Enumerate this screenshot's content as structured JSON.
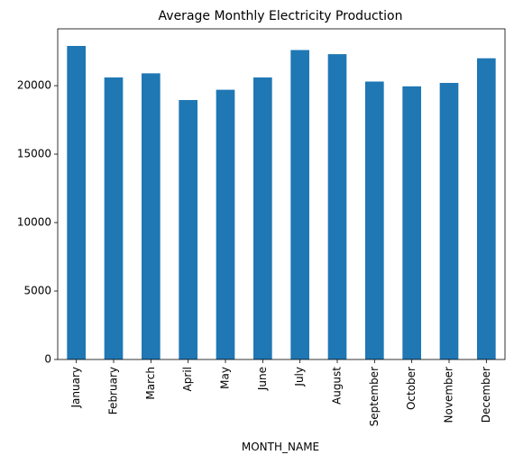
{
  "chart_data": {
    "type": "bar",
    "title": "Average Monthly Electricity Production",
    "xlabel": "MONTH_NAME",
    "ylabel": "",
    "categories": [
      "January",
      "February",
      "March",
      "April",
      "May",
      "June",
      "July",
      "August",
      "September",
      "October",
      "November",
      "December"
    ],
    "values": [
      22900,
      20600,
      20900,
      18950,
      19700,
      20600,
      22600,
      22300,
      20300,
      19950,
      20200,
      22000
    ],
    "ylim": [
      0,
      24150
    ],
    "yticks": [
      0,
      5000,
      10000,
      15000,
      20000
    ],
    "ytick_labels": [
      "0",
      "5000",
      "10000",
      "15000",
      "20000"
    ],
    "bar_color": "#1f77b4",
    "grid": false,
    "legend": "none"
  }
}
